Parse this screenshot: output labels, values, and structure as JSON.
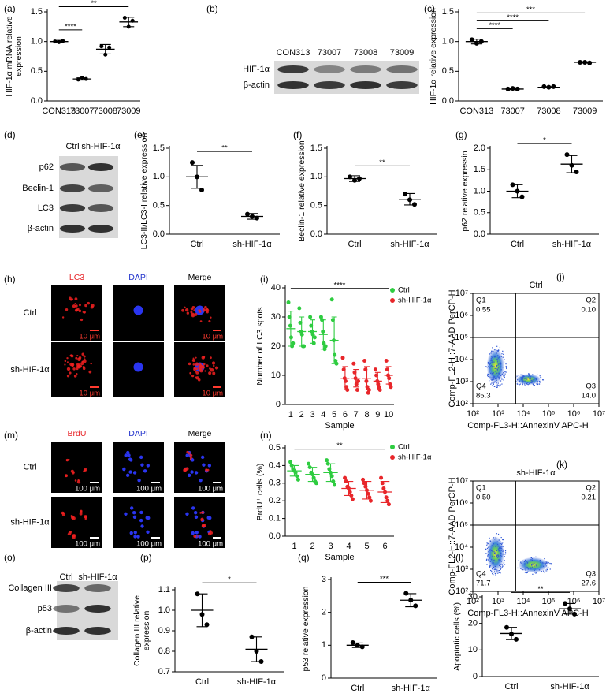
{
  "chart_data": [
    {
      "type": "dot",
      "label": "(a)",
      "ylabel": [
        "HIF-1α mRNA relative",
        "expression"
      ],
      "ylim": [
        0,
        1.5
      ],
      "yticks": [
        {
          "value": 0,
          "label": "0.0"
        },
        0.5,
        {
          "value": 1,
          "label": "1.0"
        },
        1.5
      ],
      "series": [
        {
          "color": "#000000",
          "categories": [
            "CON313",
            "73007",
            "73008",
            "73009"
          ],
          "points": [
            [
              1.0,
              0.99,
              1.01
            ],
            [
              0.36,
              0.39,
              0.37
            ],
            [
              0.92,
              0.78,
              0.9
            ],
            [
              1.4,
              1.25,
              1.35
            ]
          ],
          "means": [
            1.0,
            0.37,
            0.87,
            1.33
          ],
          "errors": [
            0.02,
            0.02,
            0.08,
            0.08
          ]
        }
      ],
      "significance": [
        {
          "text": "****",
          "from": "CON313",
          "to": "73007"
        },
        {
          "text": "**",
          "from": "CON313",
          "to": "73009"
        }
      ]
    },
    {
      "type": "dot",
      "label": "(c)",
      "ylabel": "HIF-1α relative expression",
      "ylim": [
        0,
        1.5
      ],
      "yticks": [
        {
          "value": 0,
          "label": "0.0"
        },
        0.5,
        {
          "value": 1,
          "label": "1.0"
        },
        1.5
      ],
      "series": [
        {
          "color": "#000000",
          "categories": [
            "CON313",
            "73007",
            "73008",
            "73009"
          ],
          "points": [
            [
              1.03,
              0.97,
              1.0
            ],
            [
              0.2,
              0.21,
              0.2
            ],
            [
              0.24,
              0.23,
              0.24
            ],
            [
              0.65,
              0.65,
              0.64
            ]
          ],
          "means": [
            1.0,
            0.2,
            0.23,
            0.65
          ],
          "errors": [
            0.04,
            0.01,
            0.01,
            0.01
          ]
        }
      ],
      "significance": [
        {
          "text": "****",
          "from": "CON313",
          "to": "73007"
        },
        {
          "text": "****",
          "from": "CON313",
          "to": "73008"
        },
        {
          "text": "***",
          "from": "CON313",
          "to": "73009"
        }
      ]
    },
    {
      "type": "dot",
      "label": "(e)",
      "ylabel": "LC3-II/LC3-I relative expression",
      "ylim": [
        0,
        1.5
      ],
      "yticks": [
        {
          "value": 0,
          "label": "0.0"
        },
        0.5,
        {
          "value": 1,
          "label": "1.0"
        },
        1.5
      ],
      "series": [
        {
          "color": "#000000",
          "categories": [
            "Ctrl",
            "sh-HIF-1α"
          ],
          "points": [
            [
              1.25,
              1.0,
              0.77
            ],
            [
              0.35,
              0.31,
              0.28
            ]
          ],
          "means": [
            1.0,
            0.31
          ],
          "errors": [
            0.2,
            0.05
          ]
        }
      ],
      "significance": [
        {
          "text": "**",
          "from": "Ctrl",
          "to": "sh-HIF-1α"
        }
      ]
    },
    {
      "type": "dot",
      "label": "(f)",
      "ylabel": "Beclin-1 relative expression",
      "ylim": [
        0,
        1.5
      ],
      "yticks": [
        {
          "value": 0,
          "label": "0.0"
        },
        0.5,
        {
          "value": 1,
          "label": "1.0"
        },
        1.5
      ],
      "series": [
        {
          "color": "#000000",
          "categories": [
            "Ctrl",
            "sh-HIF-1α"
          ],
          "points": [
            [
              1.0,
              0.94,
              0.97
            ],
            [
              0.7,
              0.6,
              0.52
            ]
          ],
          "means": [
            0.97,
            0.61
          ],
          "errors": [
            0.05,
            0.1
          ]
        }
      ],
      "significance": [
        {
          "text": "**",
          "from": "Ctrl",
          "to": "sh-HIF-1α"
        }
      ]
    },
    {
      "type": "dot",
      "label": "(g)",
      "ylabel": "p62 relative expressin",
      "ylim": [
        0,
        2
      ],
      "yticks": [
        {
          "value": 0,
          "label": "0.0"
        },
        0.5,
        {
          "value": 1,
          "label": "1.0"
        },
        1.5,
        {
          "value": 2,
          "label": "2.0"
        }
      ],
      "series": [
        {
          "color": "#000000",
          "categories": [
            "Ctrl",
            "sh-HIF-1α"
          ],
          "points": [
            [
              1.15,
              1.0,
              0.87
            ],
            [
              1.85,
              1.6,
              1.45
            ]
          ],
          "means": [
            1.0,
            1.63
          ],
          "errors": [
            0.15,
            0.2
          ]
        }
      ],
      "significance": [
        {
          "text": "*",
          "from": "Ctrl",
          "to": "sh-HIF-1α"
        }
      ]
    },
    {
      "type": "dot",
      "label": "(i)",
      "ylabel": "Number of LC3 spots",
      "xlabel": "Sample",
      "ylim": [
        0,
        40
      ],
      "yticks": [
        0,
        10,
        20,
        30,
        40
      ],
      "series": [
        {
          "name": "Ctrl",
          "color": "#2ecc40",
          "categories": [
            1,
            2,
            3,
            4,
            5
          ],
          "points": [
            [
              35,
              30,
              27,
              23,
              20,
              21
            ],
            [
              33,
              28,
              25,
              24,
              20,
              20
            ],
            [
              30,
              27,
              25,
              24,
              21,
              23
            ],
            [
              30,
              29,
              25,
              21,
              19,
              20
            ],
            [
              36,
              29,
              22,
              17,
              15,
              14
            ]
          ],
          "means": [
            26,
            25,
            25,
            24,
            22
          ],
          "errors": [
            6,
            5,
            4,
            5,
            8
          ]
        },
        {
          "name": "sh-HIF-1α",
          "color": "#e8262a",
          "categories": [
            6,
            7,
            8,
            9,
            10
          ],
          "points": [
            [
              16,
              12,
              9,
              8,
              6,
              5
            ],
            [
              14,
              11,
              9,
              7,
              5,
              8
            ],
            [
              15,
              12,
              8,
              6,
              4,
              5
            ],
            [
              12,
              10,
              8,
              7,
              6,
              5
            ],
            [
              15,
              12,
              10,
              9,
              7,
              6
            ]
          ],
          "means": [
            9,
            9,
            9,
            8,
            10
          ],
          "errors": [
            4,
            3,
            4,
            3,
            3
          ]
        }
      ],
      "significance": [
        {
          "text": "****",
          "from": 1,
          "to": 10
        }
      ]
    },
    {
      "type": "flow",
      "label": "(j)",
      "title": "Ctrl",
      "xlabel": "Comp-FL3-H::AnnexinV APC-H",
      "ylabel": "Comp-FL2-H::7-AAD PerCP-H",
      "log": true,
      "xlim": [
        100,
        10000000
      ],
      "ylim": [
        100,
        10000000
      ],
      "xticks": [
        {
          "value": 100,
          "label": "10²"
        },
        {
          "value": 1000,
          "label": "10³"
        },
        {
          "value": 10000,
          "label": "10⁴"
        },
        {
          "value": 100000,
          "label": "10⁵"
        },
        {
          "value": 1000000,
          "label": "10⁶"
        },
        {
          "value": 10000000,
          "label": "10⁷"
        }
      ],
      "yticks": [
        {
          "value": 100,
          "label": "10²"
        },
        {
          "value": 1000,
          "label": "10³"
        },
        {
          "value": 10000,
          "label": "10⁴"
        },
        {
          "value": 100000,
          "label": "10⁵"
        },
        {
          "value": 1000000,
          "label": "10⁶"
        },
        {
          "value": 10000000,
          "label": "10⁷"
        }
      ],
      "gate": [
        5000,
        100000
      ],
      "quadrants": [
        "Q1",
        "Q2",
        "Q3",
        "Q4"
      ],
      "values": [
        0.55,
        0.1,
        14.0,
        85.3
      ],
      "value_labels": [
        "0.55",
        "0.10",
        "14.0",
        "85.3"
      ]
    },
    {
      "type": "dot",
      "label": "(n)",
      "ylabel": "BrdU⁺ cells (%)",
      "xlabel": "Sample",
      "ylim": [
        0,
        0.5
      ],
      "yticks": [
        {
          "value": 0,
          "label": "0.0"
        },
        0.1,
        0.2,
        0.3,
        0.4,
        0.5
      ],
      "series": [
        {
          "name": "Ctrl",
          "color": "#2ecc40",
          "categories": [
            1,
            2,
            3
          ],
          "points": [
            [
              0.42,
              0.4,
              0.38,
              0.37,
              0.36,
              0.34,
              0.32
            ],
            [
              0.41,
              0.39,
              0.36,
              0.35,
              0.33,
              0.31,
              0.3
            ],
            [
              0.43,
              0.41,
              0.38,
              0.36,
              0.34,
              0.31,
              0.29
            ]
          ],
          "means": [
            0.37,
            0.35,
            0.36
          ],
          "errors": [
            0.03,
            0.04,
            0.05
          ]
        },
        {
          "name": "sh-HIF-1α",
          "color": "#e8262a",
          "categories": [
            4,
            5,
            6
          ],
          "points": [
            [
              0.33,
              0.31,
              0.28,
              0.27,
              0.25,
              0.23,
              0.21
            ],
            [
              0.32,
              0.3,
              0.28,
              0.26,
              0.24,
              0.22,
              0.2
            ],
            [
              0.33,
              0.3,
              0.27,
              0.25,
              0.22,
              0.2,
              0.18
            ]
          ],
          "means": [
            0.27,
            0.26,
            0.25
          ],
          "errors": [
            0.04,
            0.05,
            0.06
          ]
        }
      ],
      "significance": [
        {
          "text": "**",
          "from": 1,
          "to": 6
        }
      ]
    },
    {
      "type": "flow",
      "label": "(k)",
      "title": "sh-HIF-1α",
      "xlabel": "Comp-FL3-H::AnnexinV APC-H",
      "ylabel": "Comp-FL2-H::7-AAD PerCP-H",
      "log": true,
      "xlim": [
        100,
        10000000
      ],
      "ylim": [
        100,
        10000000
      ],
      "xticks": [
        {
          "value": 100,
          "label": "10²"
        },
        {
          "value": 1000,
          "label": "10³"
        },
        {
          "value": 10000,
          "label": "10⁴"
        },
        {
          "value": 100000,
          "label": "10⁵"
        },
        {
          "value": 1000000,
          "label": "10⁶"
        },
        {
          "value": 10000000,
          "label": "10⁷"
        }
      ],
      "yticks": [
        {
          "value": 100,
          "label": "10²"
        },
        {
          "value": 1000,
          "label": "10³"
        },
        {
          "value": 10000,
          "label": "10⁴"
        },
        {
          "value": 100000,
          "label": "10⁵"
        },
        {
          "value": 1000000,
          "label": "10⁶"
        },
        {
          "value": 10000000,
          "label": "10⁷"
        }
      ],
      "gate": [
        5000,
        100000
      ],
      "quadrants": [
        "Q1",
        "Q2",
        "Q3",
        "Q4"
      ],
      "values": [
        0.5,
        0.21,
        27.6,
        71.7
      ],
      "value_labels": [
        "0.50",
        "0.21",
        "27.6",
        "71.7"
      ]
    },
    {
      "type": "dot",
      "label": "(p)",
      "ylabel": [
        "Collagen III relative",
        "expression"
      ],
      "ylim": [
        0.7,
        1.1
      ],
      "yticks": [
        0.7,
        0.8,
        0.9,
        {
          "value": 1,
          "label": "1.0"
        },
        1.1
      ],
      "series": [
        {
          "color": "#000000",
          "categories": [
            "Ctrl",
            "sh-HIF-1α"
          ],
          "points": [
            [
              1.08,
              0.98,
              0.93
            ],
            [
              0.87,
              0.8,
              0.75
            ]
          ],
          "means": [
            1.0,
            0.81
          ],
          "errors": [
            0.08,
            0.06
          ]
        }
      ],
      "significance": [
        {
          "text": "*",
          "from": "Ctrl",
          "to": "sh-HIF-1α"
        }
      ]
    },
    {
      "type": "dot",
      "label": "(q)",
      "ylabel": "p53 relative expression",
      "ylim": [
        0,
        3
      ],
      "yticks": [
        0,
        1,
        2,
        3
      ],
      "series": [
        {
          "color": "#000000",
          "categories": [
            "Ctrl",
            "sh-HIF-1α"
          ],
          "points": [
            [
              1.08,
              1.0,
              0.95
            ],
            [
              2.58,
              2.37,
              2.2
            ]
          ],
          "means": [
            1.0,
            2.37
          ],
          "errors": [
            0.07,
            0.2
          ]
        }
      ],
      "significance": [
        {
          "text": "***",
          "from": "Ctrl",
          "to": "sh-HIF-1α"
        }
      ]
    },
    {
      "type": "dot",
      "label": "(l)",
      "ylabel": "Apoptotic cells (%)",
      "ylim": [
        0,
        30
      ],
      "yticks": [
        0,
        10,
        20,
        30
      ],
      "series": [
        {
          "color": "#000000",
          "categories": [
            "Ctrl",
            "sh-HIF-1α"
          ],
          "points": [
            [
              18.5,
              16,
              14
            ],
            [
              27.5,
              25.5,
              23.5
            ]
          ],
          "means": [
            16.2,
            25.5
          ],
          "errors": [
            2.3,
            2
          ]
        }
      ],
      "significance": [
        {
          "text": "**",
          "from": "Ctrl",
          "to": "sh-HIF-1α"
        }
      ]
    }
  ],
  "blots": [
    {
      "label": "(b)",
      "lanes": [
        "CON313",
        "73007",
        "73008",
        "73009"
      ],
      "rows": [
        "HIF-1α",
        "β-actin"
      ]
    },
    {
      "label": "(d)",
      "lanes": [
        "Ctrl",
        "sh-HIF-1α"
      ],
      "rows": [
        "p62",
        "Beclin-1",
        "LC3",
        "β-actin"
      ]
    },
    {
      "label": "(o)",
      "lanes": [
        "Ctrl",
        "sh-HIF-1α"
      ],
      "rows": [
        "Collagen III",
        "p53",
        "β-actin"
      ]
    }
  ],
  "images": [
    {
      "label": "(h)",
      "columns": [
        "LC3",
        "DAPI",
        "Merge"
      ],
      "rows": [
        "Ctrl",
        "sh-HIF-1α"
      ],
      "scale": "10 μm"
    },
    {
      "label": "(m)",
      "columns": [
        "BrdU",
        "DAPI",
        "Merge"
      ],
      "rows": [
        "Ctrl",
        "sh-HIF-1α"
      ],
      "scale": "100 μm"
    }
  ]
}
